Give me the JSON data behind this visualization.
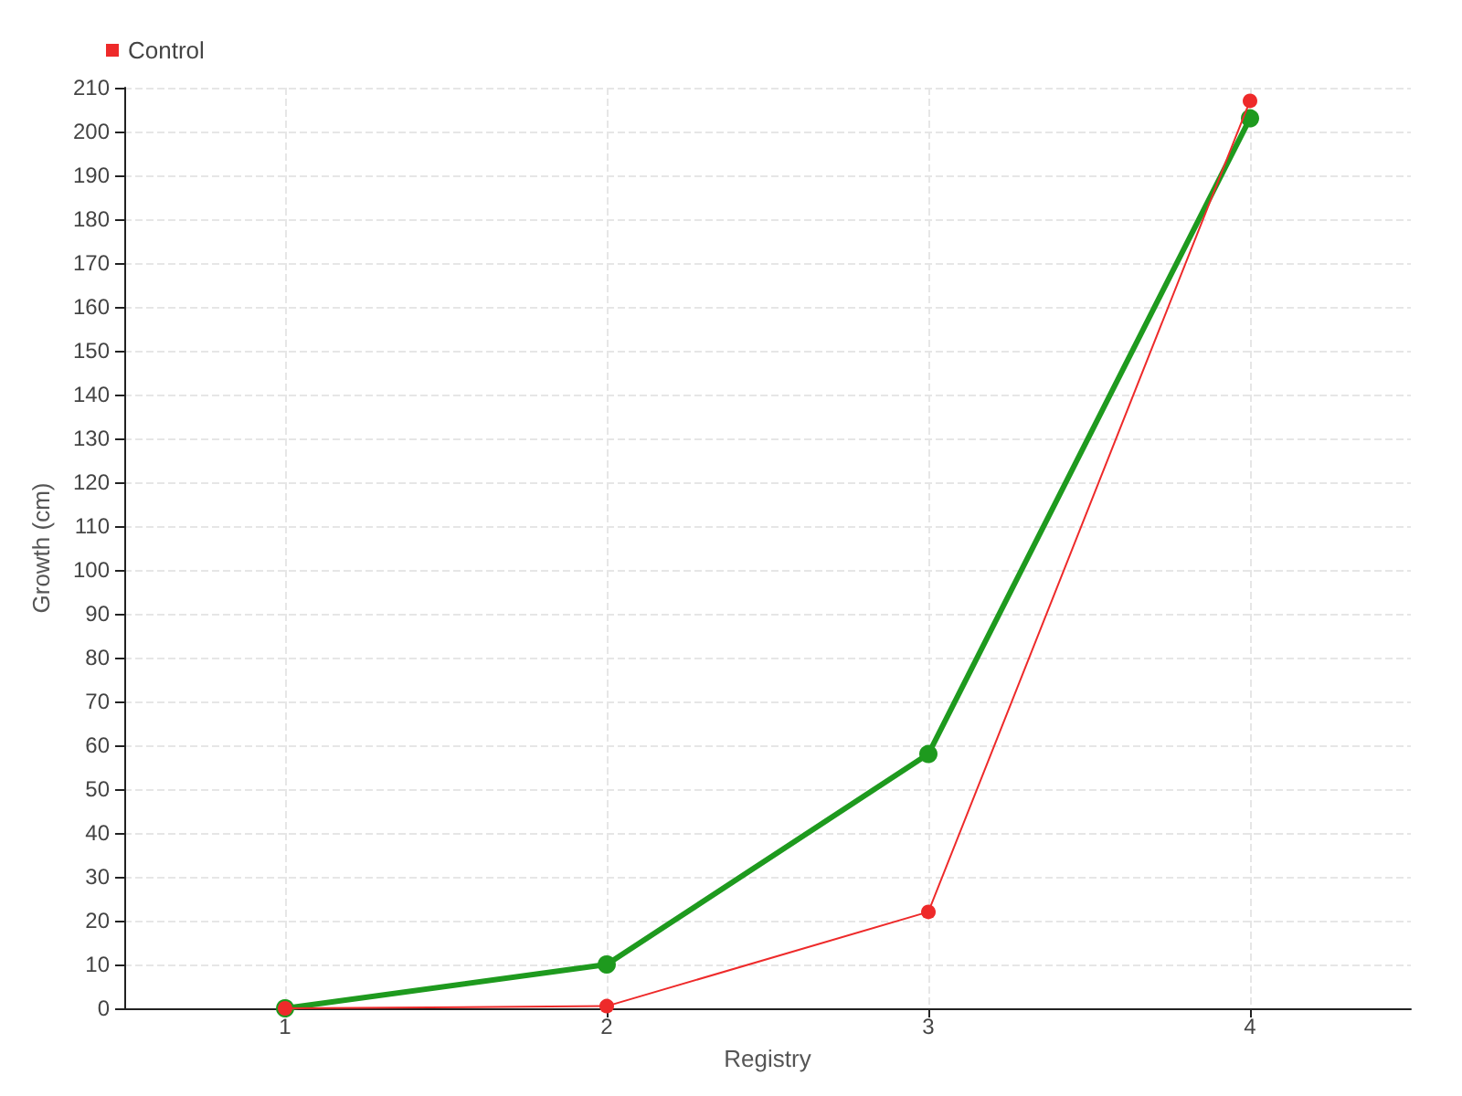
{
  "chart_data": {
    "type": "line",
    "xlabel": "Registry",
    "ylabel": "Growth (cm)",
    "x": [
      1,
      2,
      3,
      4
    ],
    "series": [
      {
        "color": "#1e9a1e",
        "values": [
          0,
          10,
          58,
          203
        ]
      },
      {
        "name": "Control",
        "color": "#ee2a2a",
        "values": [
          0,
          0.5,
          22,
          207
        ]
      }
    ],
    "xlim": [
      0.5,
      4.5
    ],
    "xticks": [
      1,
      2,
      3,
      4
    ],
    "ylim": [
      0,
      210
    ],
    "yticks": [
      0,
      10,
      20,
      30,
      40,
      50,
      60,
      70,
      80,
      90,
      100,
      110,
      120,
      130,
      140,
      150,
      160,
      170,
      180,
      190,
      200,
      210
    ],
    "grid": true,
    "legend": "top left",
    "marker": "circle",
    "line_style": "solid"
  }
}
